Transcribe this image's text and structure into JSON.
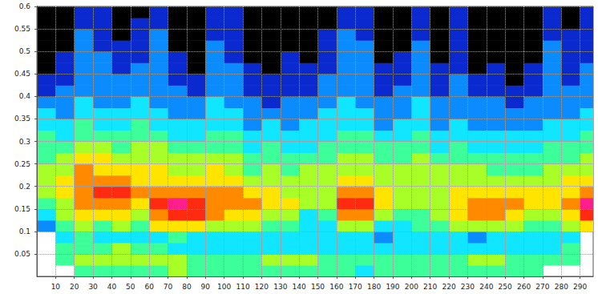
{
  "chart_data": {
    "type": "heatmap",
    "xlim": [
      0,
      297
    ],
    "xticks": [
      10,
      20,
      30,
      40,
      50,
      60,
      70,
      80,
      90,
      100,
      110,
      120,
      130,
      140,
      150,
      160,
      170,
      180,
      190,
      200,
      210,
      220,
      230,
      240,
      250,
      260,
      270,
      280,
      290
    ],
    "ylim": [
      0,
      0.6
    ],
    "yticks": [
      0.05,
      0.1,
      0.15,
      0.2,
      0.25,
      0.3,
      0.35,
      0.4,
      0.45,
      0.5,
      0.55,
      0.6
    ],
    "grid": true,
    "zlim": [
      0,
      9
    ],
    "cells": {
      "x": [
        5,
        15,
        25,
        35,
        45,
        55,
        65,
        75,
        85,
        95,
        105,
        115,
        125,
        135,
        145,
        155,
        165,
        175,
        185,
        195,
        205,
        215,
        225,
        235,
        245,
        255,
        265,
        275,
        285,
        295
      ],
      "y": [
        0.0125,
        0.0375,
        0.0625,
        0.0875,
        0.1125,
        0.1375,
        0.1625,
        0.1875,
        0.2125,
        0.2375,
        0.2625,
        0.2875,
        0.3125,
        0.3375,
        0.3625,
        0.3875,
        0.4125,
        0.4375,
        0.4625,
        0.4875,
        0.5125,
        0.5375,
        0.5625,
        0.5875
      ],
      "values": [
        [
          null,
          null,
          4,
          4,
          4,
          4,
          4,
          5,
          4,
          4,
          4,
          4,
          4,
          4,
          4,
          4,
          4,
          3,
          4,
          4,
          4,
          4,
          4,
          4,
          4,
          4,
          4,
          null,
          null,
          null
        ],
        [
          null,
          4,
          5,
          5,
          5,
          5,
          5,
          5,
          4,
          4,
          4,
          4,
          5,
          5,
          5,
          4,
          4,
          4,
          4,
          4,
          4,
          4,
          4,
          5,
          5,
          4,
          4,
          4,
          4,
          null
        ],
        [
          null,
          4,
          4,
          4,
          5,
          4,
          4,
          3,
          3,
          3,
          3,
          3,
          3,
          3,
          3,
          3,
          3,
          3,
          3,
          3,
          3,
          3,
          3,
          3,
          3,
          3,
          3,
          3,
          4,
          null
        ],
        [
          null,
          3,
          4,
          3,
          3,
          3,
          3,
          4,
          3,
          3,
          3,
          3,
          3,
          3,
          3,
          3,
          3,
          3,
          2,
          3,
          3,
          3,
          3,
          2,
          3,
          3,
          3,
          3,
          3,
          null
        ],
        [
          2,
          4,
          5,
          4,
          5,
          4,
          6,
          6,
          6,
          5,
          5,
          5,
          4,
          4,
          3,
          3,
          5,
          5,
          3,
          3,
          4,
          4,
          5,
          5,
          5,
          5,
          4,
          4,
          5,
          6
        ],
        [
          3,
          5,
          6,
          6,
          6,
          5,
          7,
          8,
          8,
          7,
          6,
          6,
          5,
          5,
          3,
          4,
          7,
          7,
          5,
          4,
          4,
          5,
          6,
          7,
          7,
          6,
          5,
          5,
          6,
          8
        ],
        [
          4,
          5,
          7,
          7,
          7,
          6,
          8,
          9,
          8,
          7,
          7,
          7,
          6,
          6,
          5,
          5,
          8,
          8,
          6,
          5,
          5,
          5,
          6,
          7,
          7,
          7,
          6,
          6,
          7,
          9
        ],
        [
          5,
          6,
          7,
          8,
          8,
          7,
          7,
          7,
          7,
          7,
          7,
          6,
          6,
          5,
          5,
          5,
          7,
          7,
          6,
          5,
          5,
          5,
          6,
          6,
          6,
          6,
          6,
          6,
          6,
          7
        ],
        [
          5,
          6,
          7,
          7,
          7,
          6,
          6,
          6,
          6,
          6,
          6,
          5,
          5,
          5,
          5,
          5,
          6,
          6,
          5,
          5,
          5,
          5,
          5,
          5,
          5,
          5,
          5,
          5,
          6,
          6
        ],
        [
          5,
          5,
          7,
          6,
          6,
          6,
          6,
          5,
          5,
          6,
          5,
          4,
          5,
          4,
          5,
          5,
          5,
          5,
          5,
          5,
          5,
          5,
          5,
          5,
          4,
          4,
          4,
          5,
          5,
          5
        ],
        [
          4,
          5,
          6,
          6,
          5,
          5,
          5,
          5,
          5,
          5,
          5,
          4,
          4,
          4,
          4,
          4,
          5,
          5,
          4,
          4,
          5,
          4,
          4,
          4,
          4,
          4,
          4,
          4,
          4,
          5
        ],
        [
          4,
          4,
          5,
          5,
          4,
          5,
          5,
          4,
          4,
          4,
          4,
          3,
          4,
          3,
          3,
          4,
          4,
          4,
          4,
          4,
          4,
          3,
          4,
          3,
          3,
          3,
          3,
          4,
          4,
          4
        ],
        [
          4,
          3,
          4,
          4,
          4,
          4,
          4,
          3,
          3,
          4,
          4,
          3,
          3,
          3,
          3,
          3,
          4,
          4,
          3,
          3,
          4,
          3,
          3,
          3,
          3,
          3,
          3,
          3,
          3,
          4
        ],
        [
          3,
          3,
          4,
          3,
          3,
          4,
          3,
          3,
          3,
          3,
          3,
          2,
          3,
          2,
          3,
          3,
          3,
          3,
          2,
          3,
          3,
          2,
          3,
          2,
          2,
          2,
          2,
          3,
          3,
          3
        ],
        [
          3,
          2,
          3,
          3,
          3,
          3,
          3,
          2,
          2,
          3,
          3,
          2,
          2,
          2,
          2,
          3,
          3,
          3,
          2,
          2,
          3,
          2,
          2,
          2,
          2,
          2,
          2,
          2,
          2,
          3
        ],
        [
          2,
          2,
          3,
          2,
          2,
          3,
          2,
          2,
          2,
          3,
          2,
          2,
          1,
          2,
          2,
          2,
          3,
          2,
          2,
          2,
          3,
          2,
          2,
          2,
          2,
          1,
          2,
          2,
          2,
          2
        ],
        [
          1,
          2,
          2,
          2,
          2,
          2,
          2,
          2,
          1,
          2,
          2,
          1,
          1,
          1,
          1,
          2,
          2,
          2,
          1,
          2,
          2,
          1,
          2,
          1,
          1,
          1,
          1,
          2,
          2,
          2
        ],
        [
          1,
          1,
          2,
          2,
          2,
          2,
          2,
          1,
          1,
          2,
          2,
          1,
          1,
          1,
          1,
          2,
          2,
          2,
          1,
          1,
          2,
          1,
          2,
          1,
          1,
          0,
          1,
          2,
          1,
          2
        ],
        [
          0,
          1,
          2,
          2,
          1,
          2,
          2,
          1,
          0,
          2,
          2,
          1,
          0,
          1,
          1,
          1,
          2,
          2,
          1,
          1,
          2,
          1,
          1,
          0,
          1,
          0,
          1,
          2,
          1,
          2
        ],
        [
          0,
          1,
          2,
          2,
          1,
          1,
          2,
          1,
          0,
          2,
          1,
          0,
          0,
          1,
          0,
          1,
          2,
          2,
          0,
          1,
          2,
          0,
          1,
          0,
          0,
          0,
          0,
          2,
          1,
          1
        ],
        [
          0,
          0,
          2,
          1,
          1,
          1,
          2,
          0,
          0,
          2,
          1,
          0,
          0,
          0,
          0,
          1,
          2,
          2,
          0,
          0,
          2,
          0,
          1,
          0,
          0,
          0,
          0,
          2,
          1,
          1
        ],
        [
          0,
          0,
          2,
          1,
          0,
          1,
          2,
          0,
          0,
          1,
          1,
          0,
          0,
          0,
          0,
          1,
          2,
          1,
          0,
          0,
          1,
          0,
          1,
          0,
          0,
          0,
          0,
          1,
          1,
          1
        ],
        [
          0,
          0,
          1,
          1,
          0,
          1,
          1,
          0,
          0,
          1,
          1,
          0,
          0,
          0,
          0,
          0,
          1,
          1,
          0,
          0,
          1,
          0,
          1,
          0,
          0,
          0,
          0,
          1,
          0,
          1
        ],
        [
          0,
          0,
          1,
          1,
          0,
          0,
          1,
          0,
          0,
          1,
          1,
          0,
          0,
          0,
          0,
          0,
          1,
          1,
          0,
          0,
          1,
          0,
          1,
          0,
          0,
          0,
          0,
          1,
          0,
          1
        ]
      ]
    }
  }
}
